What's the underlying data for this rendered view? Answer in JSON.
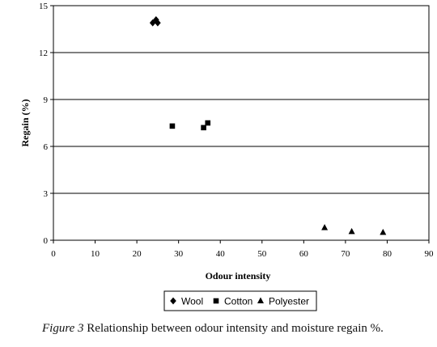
{
  "chart_data": {
    "type": "scatter",
    "xlabel": "Odour intensity",
    "ylabel": "Regain (%)",
    "xlim": [
      0,
      90
    ],
    "ylim": [
      0,
      15
    ],
    "xticks": [
      "0",
      "10",
      "20",
      "30",
      "40",
      "50",
      "60",
      "70",
      "80",
      "90"
    ],
    "yticks": [
      "0",
      "3",
      "6",
      "9",
      "12",
      "15"
    ],
    "grid": "horizontal",
    "legend_position": "bottom",
    "series": [
      {
        "name": "Wool",
        "marker": "diamond",
        "points": [
          {
            "x": 23.8,
            "y": 13.9
          },
          {
            "x": 24.6,
            "y": 14.1
          },
          {
            "x": 25.0,
            "y": 13.9
          }
        ]
      },
      {
        "name": "Cotton",
        "marker": "square",
        "points": [
          {
            "x": 28.5,
            "y": 7.3
          },
          {
            "x": 36.0,
            "y": 7.2
          },
          {
            "x": 37.0,
            "y": 7.5
          }
        ]
      },
      {
        "name": "Polyester",
        "marker": "triangle",
        "points": [
          {
            "x": 65.0,
            "y": 0.8
          },
          {
            "x": 71.5,
            "y": 0.55
          },
          {
            "x": 79.0,
            "y": 0.5
          }
        ]
      }
    ]
  },
  "caption": {
    "lead": "Figure 3",
    "text": "Relationship between odour intensity and moisture regain %."
  }
}
